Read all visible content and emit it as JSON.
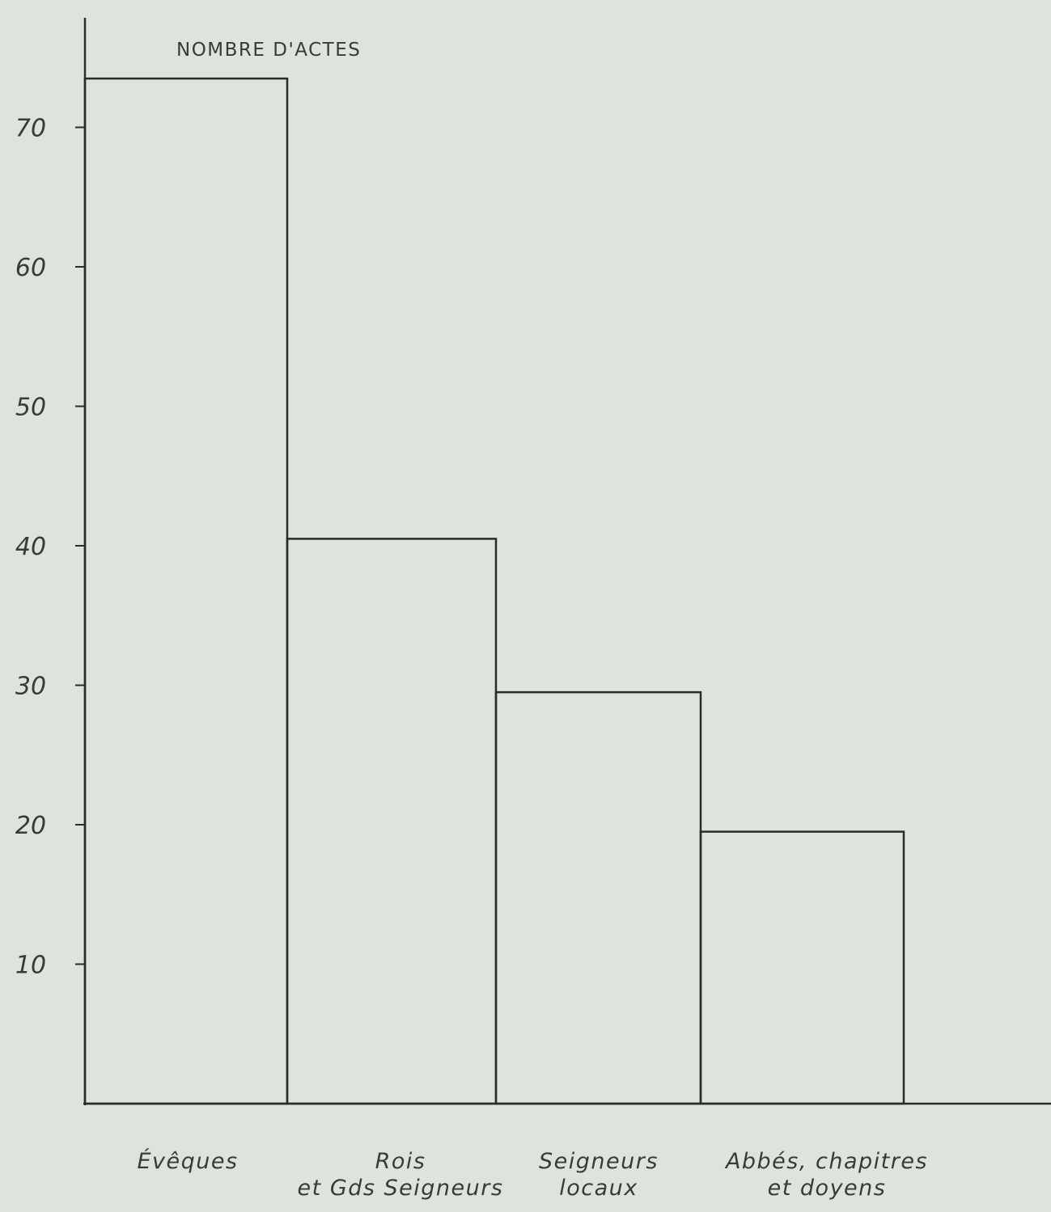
{
  "chart_data": {
    "type": "bar",
    "ylabel": "NOMBRE D'ACTES",
    "categories": [
      [
        "Évêques"
      ],
      [
        "Rois",
        "et Gds Seigneurs"
      ],
      [
        "Seigneurs",
        "locaux"
      ],
      [
        "Abbés, chapitres",
        "et doyens"
      ]
    ],
    "values": [
      73.5,
      40.5,
      29.5,
      19.5
    ],
    "yticks": [
      {
        "value": 10,
        "label": "10"
      },
      {
        "value": 20,
        "label": "20"
      },
      {
        "value": 30,
        "label": "30"
      },
      {
        "value": 40,
        "label": "40"
      },
      {
        "value": 50,
        "label": "50"
      },
      {
        "value": 60,
        "label": "60"
      },
      {
        "value": 70,
        "label": "70"
      }
    ],
    "ylim": [
      0,
      80
    ],
    "grid": false,
    "colors": {
      "background": "#dde4de",
      "ink": "#2b2b2b"
    }
  }
}
